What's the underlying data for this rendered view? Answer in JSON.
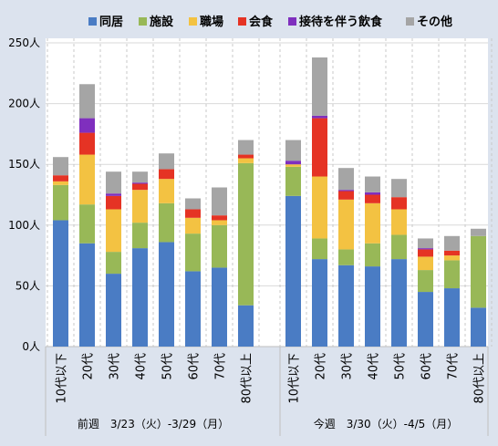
{
  "chart_data": {
    "type": "bar",
    "stacked": true,
    "title": "",
    "ylim": [
      0,
      250
    ],
    "yticks": [
      "0人",
      "50人",
      "100人",
      "150人",
      "200人",
      "250人"
    ],
    "grid": "horizontal-solid, vertical-dashed",
    "legend": {
      "placement": "top",
      "items": [
        {
          "name": "同居",
          "color": "#4a7cc4"
        },
        {
          "name": "施設",
          "color": "#98b857"
        },
        {
          "name": "職場",
          "color": "#f3c242"
        },
        {
          "name": "会食",
          "color": "#e53324"
        },
        {
          "name": "接待を伴う飲食",
          "color": "#7f2fbe"
        },
        {
          "name": "その他",
          "color": "#a5a5a5"
        }
      ]
    },
    "categories": [
      "10代以下",
      "20代",
      "30代",
      "40代",
      "50代",
      "60代",
      "70代",
      "80代以上"
    ],
    "groups": [
      {
        "label": "前週　3/23（火）-3/29（月）",
        "series": [
          {
            "name": "同居",
            "values": [
              104,
              85,
              60,
              81,
              86,
              62,
              65,
              34
            ]
          },
          {
            "name": "施設",
            "values": [
              29,
              32,
              18,
              21,
              32,
              31,
              35,
              117
            ]
          },
          {
            "name": "職場",
            "values": [
              3,
              41,
              35,
              27,
              20,
              13,
              4,
              4
            ]
          },
          {
            "name": "会食",
            "values": [
              5,
              18,
              11,
              5,
              8,
              7,
              4,
              3
            ]
          },
          {
            "name": "接待を伴う飲食",
            "values": [
              0,
              12,
              2,
              1,
              0,
              0,
              0,
              0
            ]
          },
          {
            "name": "その他",
            "values": [
              15,
              28,
              18,
              9,
              13,
              9,
              23,
              12
            ]
          }
        ]
      },
      {
        "label": "今週　3/30（火）-4/5（月）",
        "series": [
          {
            "name": "同居",
            "values": [
              124,
              72,
              67,
              66,
              72,
              45,
              48,
              32
            ]
          },
          {
            "name": "施設",
            "values": [
              24,
              17,
              13,
              19,
              20,
              18,
              23,
              59
            ]
          },
          {
            "name": "職場",
            "values": [
              2,
              51,
              41,
              33,
              21,
              11,
              4,
              0
            ]
          },
          {
            "name": "会食",
            "values": [
              0,
              48,
              7,
              7,
              10,
              6,
              4,
              0
            ]
          },
          {
            "name": "接待を伴う飲食",
            "values": [
              3,
              2,
              1,
              2,
              0,
              1,
              0,
              0
            ]
          },
          {
            "name": "その他",
            "values": [
              17,
              48,
              18,
              13,
              15,
              8,
              12,
              6
            ]
          }
        ]
      }
    ]
  }
}
